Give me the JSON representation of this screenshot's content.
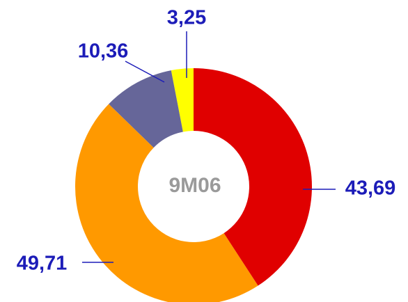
{
  "chart_data": {
    "type": "donut",
    "center_label": "9M06",
    "categories": [
      null,
      null,
      null,
      null
    ],
    "values": [
      43.69,
      49.71,
      10.36,
      3.25
    ],
    "value_labels": [
      "43,69",
      "49,71",
      "10,36",
      "3,25"
    ],
    "colors": [
      "#e00000",
      "#ff9900",
      "#666699",
      "#ffff00"
    ]
  }
}
